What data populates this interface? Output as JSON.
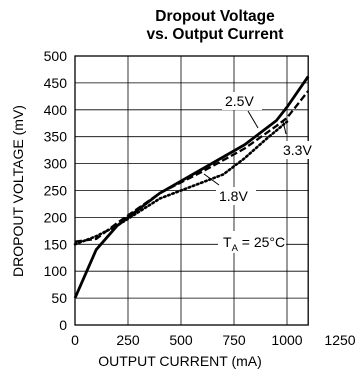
{
  "chart_data": {
    "type": "line",
    "title_lines": [
      "Dropout Voltage",
      "vs. Output Current"
    ],
    "xlabel": "OUTPUT CURRENT (mA)",
    "ylabel": "DROPOUT VOLTAGE (mV)",
    "xlim": [
      0,
      1250
    ],
    "ylim": [
      0,
      500
    ],
    "xticks": [
      "0",
      "250",
      "500",
      "750",
      "1000",
      "1250"
    ],
    "yticks": [
      "0",
      "50",
      "100",
      "150",
      "200",
      "250",
      "300",
      "350",
      "400",
      "450",
      "500"
    ],
    "grid": true,
    "series": [
      {
        "name": "2.5V",
        "style": "solid",
        "x": [
          0,
          100,
          200,
          400,
          600,
          800,
          950,
          1000,
          1100
        ],
        "y": [
          50,
          140,
          185,
          245,
          290,
          335,
          380,
          405,
          462
        ]
      },
      {
        "name": "3.3V",
        "style": "dashed",
        "x": [
          0,
          100,
          200,
          400,
          600,
          800,
          950,
          1000,
          1100
        ],
        "y": [
          155,
          160,
          190,
          245,
          285,
          328,
          370,
          385,
          435
        ]
      },
      {
        "name": "1.8V",
        "style": "dotted",
        "x": [
          0,
          100,
          200,
          400,
          600,
          700,
          800,
          900,
          1000
        ],
        "y": [
          150,
          165,
          185,
          235,
          265,
          280,
          310,
          345,
          378
        ]
      }
    ],
    "annotations": {
      "temperature_main": "T",
      "temperature_sub": "A",
      "temperature_value": " = 25°C"
    },
    "colors": {
      "line": "#000000",
      "grid": "#000000",
      "background": "#ffffff"
    }
  }
}
